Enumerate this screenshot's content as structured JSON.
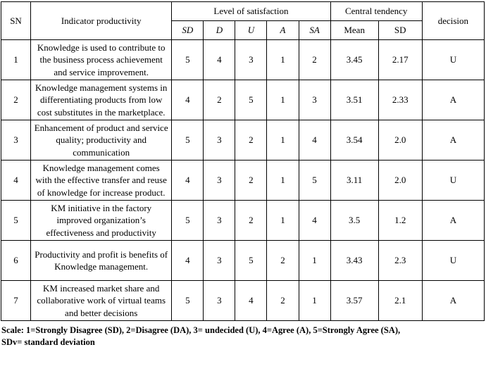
{
  "table": {
    "header": {
      "sn": "SN",
      "indicator": "Indicator productivity",
      "satisfaction_group": "Level of satisfaction",
      "satisfaction_cols": [
        "SD",
        "D",
        "U",
        "A",
        "SA"
      ],
      "central_group": "Central tendency",
      "central_cols": [
        "Mean",
        "SD"
      ],
      "decision": "decision"
    },
    "rows": [
      {
        "sn": "1",
        "indicator": "Knowledge is used to contribute to the business process achievement and service improvement.",
        "values": [
          "5",
          "4",
          "3",
          "1",
          "2"
        ],
        "mean": "3.45",
        "sd": "2.17",
        "decision": "U"
      },
      {
        "sn": "2",
        "indicator": "Knowledge management systems in differentiating products from low cost substitutes in the marketplace.",
        "values": [
          "4",
          "2",
          "5",
          "1",
          "3"
        ],
        "mean": "3.51",
        "sd": "2.33",
        "decision": "A"
      },
      {
        "sn": "3",
        "indicator": "Enhancement of product and service quality; productivity and communication",
        "values": [
          "5",
          "3",
          "2",
          "1",
          "4"
        ],
        "mean": "3.54",
        "sd": "2.0",
        "decision": "A"
      },
      {
        "sn": "4",
        "indicator": "Knowledge management comes with the effective transfer and reuse of knowledge for increase product.",
        "values": [
          "4",
          "3",
          "2",
          "1",
          "5"
        ],
        "mean": "3.11",
        "sd": "2.0",
        "decision": "U"
      },
      {
        "sn": "5",
        "indicator": "KM initiative in the factory improved organization’s effectiveness and productivity",
        "values": [
          "5",
          "3",
          "2",
          "1",
          "4"
        ],
        "mean": "3.5",
        "sd": "1.2",
        "decision": "A"
      },
      {
        "sn": "6",
        "indicator": "Productivity and profit is benefits of Knowledge management.",
        "values": [
          "4",
          "3",
          "5",
          "2",
          "1"
        ],
        "mean": "3.43",
        "sd": "2.3",
        "decision": "U"
      },
      {
        "sn": "7",
        "indicator": "KM increased market share and collaborative work of virtual teams and better decisions",
        "values": [
          "5",
          "3",
          "4",
          "2",
          "1"
        ],
        "mean": "3.57",
        "sd": "2.1",
        "decision": "A"
      }
    ]
  },
  "footnote": {
    "line1": "Scale: 1=Strongly Disagree (SD), 2=Disagree (DA), 3= undecided (U), 4=Agree (A), 5=Strongly Agree (SA),",
    "line2": "SDv= standard deviation"
  }
}
